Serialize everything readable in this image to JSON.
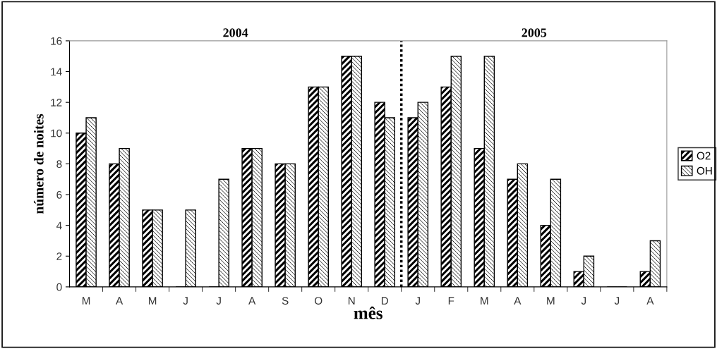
{
  "chart_data": {
    "type": "bar",
    "xlabel": "mês",
    "ylabel": "número de noites",
    "categories": [
      "M",
      "A",
      "M",
      "J",
      "J",
      "A",
      "S",
      "O",
      "N",
      "D",
      "J",
      "F",
      "M",
      "A",
      "M",
      "J",
      "J",
      "A"
    ],
    "series": [
      {
        "name": "O2",
        "color": "#000000",
        "values": [
          10,
          8,
          5,
          0,
          0,
          9,
          8,
          13,
          15,
          12,
          11,
          13,
          9,
          7,
          4,
          1,
          0,
          1
        ]
      },
      {
        "name": "OH",
        "color": "#000000",
        "values": [
          11,
          9,
          5,
          5,
          7,
          9,
          8,
          13,
          15,
          11,
          12,
          15,
          15,
          8,
          7,
          2,
          0,
          3
        ]
      }
    ],
    "ylim": [
      0,
      16
    ],
    "yticks": [
      0,
      2,
      4,
      6,
      8,
      10,
      12,
      14,
      16
    ],
    "annotations": [
      "2004",
      "2005"
    ],
    "grid": false,
    "legend": "right"
  }
}
